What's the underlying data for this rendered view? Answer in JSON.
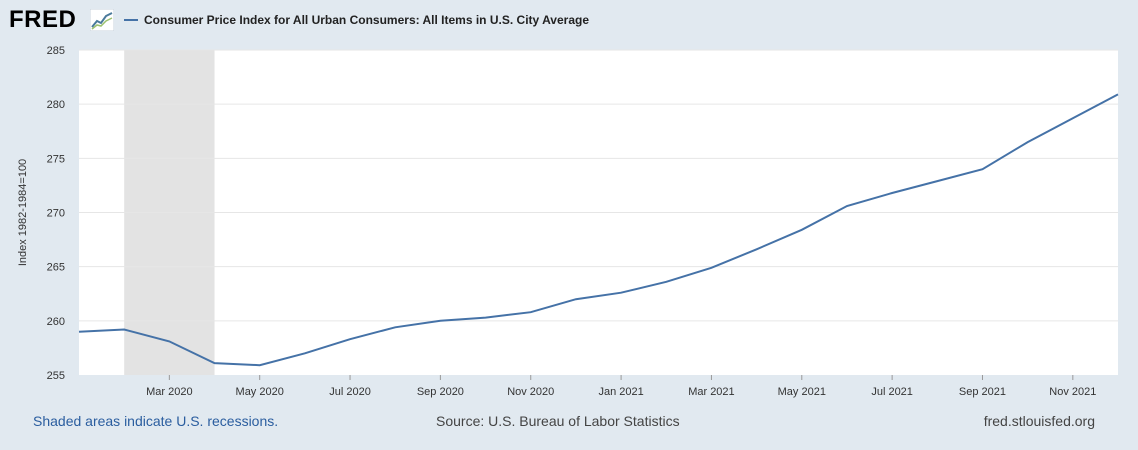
{
  "header": {
    "logo_text": "FRED",
    "logo_icon": "line-graph-icon"
  },
  "colors": {
    "line": "#4572a7",
    "recession": "#e3e3e3",
    "plot_bg": "#ffffff",
    "page_bg": "#e1e9f0",
    "grid": "#e6e6e6"
  },
  "chart_data": {
    "type": "line",
    "title": "",
    "xlabel": "",
    "ylabel": "Index 1982-1984=100",
    "ylim": [
      255,
      285
    ],
    "yticks": [
      255,
      260,
      265,
      270,
      275,
      280,
      285
    ],
    "grid": true,
    "legend_position": "top-left",
    "x_range_months": [
      0,
      23
    ],
    "x_tick_months": [
      2,
      4,
      6,
      8,
      10,
      12,
      14,
      16,
      18,
      20,
      22
    ],
    "x_tick_labels": [
      "Mar 2020",
      "May 2020",
      "Jul 2020",
      "Sep 2020",
      "Nov 2020",
      "Jan 2021",
      "Mar 2021",
      "May 2021",
      "Jul 2021",
      "Sep 2021",
      "Nov 2021"
    ],
    "recession": {
      "start_month": 1,
      "end_month": 3
    },
    "series": [
      {
        "name": "Consumer Price Index for All Urban Consumers: All Items in U.S. City Average",
        "x": [
          "Jan 2020",
          "Feb 2020",
          "Mar 2020",
          "Apr 2020",
          "May 2020",
          "Jun 2020",
          "Jul 2020",
          "Aug 2020",
          "Sep 2020",
          "Oct 2020",
          "Nov 2020",
          "Dec 2020",
          "Jan 2021",
          "Feb 2021",
          "Mar 2021",
          "Apr 2021",
          "May 2021",
          "Jun 2021",
          "Jul 2021",
          "Aug 2021",
          "Sep 2021",
          "Oct 2021",
          "Nov 2021",
          "Dec 2021"
        ],
        "values": [
          259.0,
          259.2,
          258.1,
          256.1,
          255.9,
          257.0,
          258.3,
          259.4,
          260.0,
          260.3,
          260.8,
          262.0,
          262.6,
          263.6,
          264.9,
          266.6,
          268.4,
          270.6,
          271.8,
          272.9,
          274.0,
          276.5,
          278.7,
          280.9
        ]
      }
    ]
  },
  "footer": {
    "recession_note": "Shaded areas indicate U.S. recessions.",
    "source": "Source: U.S. Bureau of Labor Statistics",
    "site": "fred.stlouisfed.org"
  }
}
